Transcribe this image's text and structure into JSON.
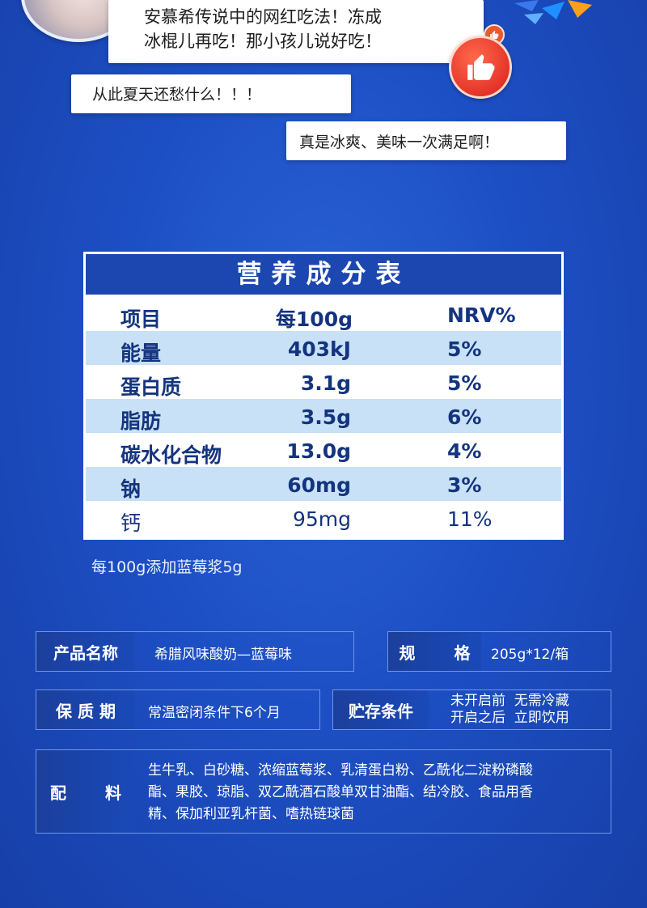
{
  "bubbles": {
    "main_line1": "安慕希传说中的网红吃法！冻成",
    "main_line2": "冰棍儿再吃！那小孩儿说好吃！",
    "second": "从此夏天还愁什么！！！",
    "third": "真是冰爽、美味一次满足啊！"
  },
  "nutrition": {
    "title": "营养成分表",
    "headers": {
      "item": "项目",
      "per": "每100g",
      "nrv": "NRV%"
    },
    "rows": [
      {
        "item": "能量",
        "per": "403kJ",
        "nrv": "5%"
      },
      {
        "item": "蛋白质",
        "per": "3.1g",
        "nrv": "5%"
      },
      {
        "item": "脂肪",
        "per": "3.5g",
        "nrv": "6%"
      },
      {
        "item": "碳水化合物",
        "per": "13.0g",
        "nrv": "4%"
      },
      {
        "item": "钠",
        "per": "60mg",
        "nrv": "3%"
      },
      {
        "item": "钙",
        "per": "95mg",
        "nrv": "11%"
      }
    ],
    "note": "每100g添加蓝莓浆5g"
  },
  "info": {
    "product_name_label": "产品名称",
    "product_name_value": "希腊风味酸奶—蓝莓味",
    "spec_label_1": "规",
    "spec_label_2": "格",
    "spec_value": "205g*12/箱",
    "shelf_label": "保 质 期",
    "shelf_value": "常温密闭条件下6个月",
    "storage_label": "贮存条件",
    "storage_line1": "未开启前  无需冷藏",
    "storage_line2": "开启之后  立即饮用",
    "ingredients_label_1": "配",
    "ingredients_label_2": "料",
    "ingredients_line1": "生牛乳、白砂糖、浓缩蓝莓浆、乳清蛋白粉、乙酰化二淀粉磷酸",
    "ingredients_line2": "酯、果胶、琼脂、双乙酰酒石酸单双甘油酯、结冷胶、食品用香",
    "ingredients_line3": "精、保加利亚乳杆菌、嗜热链球菌"
  },
  "icons": {
    "like_badge": "thumbs-up-icon",
    "like_small": "thumbs-up-icon",
    "decoration": "sparkle-decoration"
  },
  "colors": {
    "background": "#1d4fc4",
    "table_header": "#1c47b0",
    "table_alt_row": "#c8e1f7",
    "table_text": "#14347f",
    "like_red": "#e5342a"
  }
}
